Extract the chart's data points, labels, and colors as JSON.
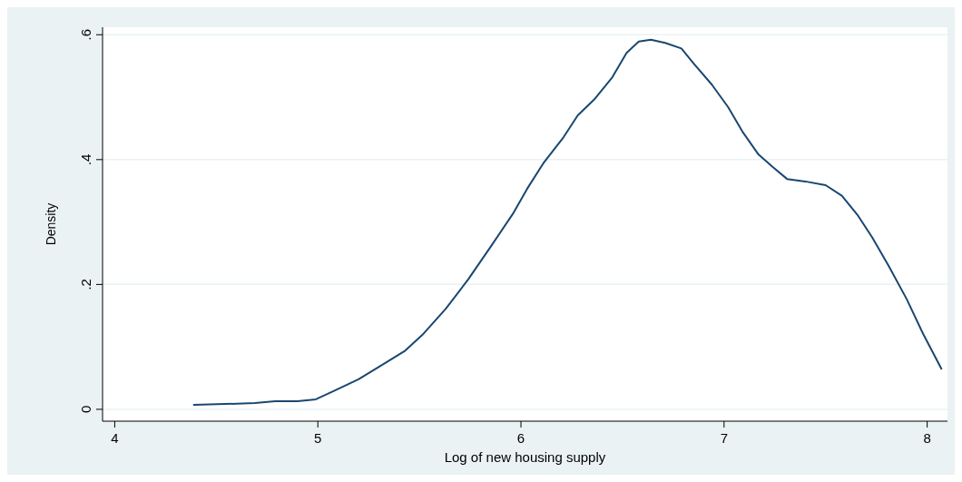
{
  "chart_data": {
    "type": "line",
    "xlabel": "Log of new housing supply",
    "ylabel": "Density",
    "xlim": [
      3.94,
      8.1
    ],
    "ylim": [
      -0.019,
      0.612
    ],
    "xticks": [
      4,
      5,
      6,
      7,
      8
    ],
    "yticks": [
      {
        "value": 0,
        "label": "0"
      },
      {
        "value": 0.2,
        "label": ".2"
      },
      {
        "value": 0.4,
        "label": ".4"
      },
      {
        "value": 0.6,
        "label": ".6"
      }
    ],
    "grid": "y",
    "series": [
      {
        "color": "#1a476f",
        "x": [
          4.39,
          4.69,
          4.79,
          4.9,
          4.99,
          5.07,
          5.2,
          5.31,
          5.43,
          5.52,
          5.63,
          5.74,
          5.85,
          5.96,
          6.03,
          6.11,
          6.21,
          6.28,
          6.36,
          6.45,
          6.52,
          6.58,
          6.64,
          6.71,
          6.79,
          6.85,
          6.94,
          7.02,
          7.09,
          7.17,
          7.24,
          7.31,
          7.4,
          7.5,
          7.58,
          7.66,
          7.73,
          7.81,
          7.9,
          7.98,
          8.07
        ],
        "values": [
          0.007,
          0.01,
          0.013,
          0.013,
          0.016,
          0.028,
          0.048,
          0.07,
          0.094,
          0.121,
          0.161,
          0.208,
          0.26,
          0.313,
          0.353,
          0.394,
          0.436,
          0.471,
          0.496,
          0.532,
          0.571,
          0.589,
          0.592,
          0.587,
          0.578,
          0.554,
          0.52,
          0.484,
          0.445,
          0.408,
          0.388,
          0.369,
          0.365,
          0.359,
          0.342,
          0.31,
          0.275,
          0.23,
          0.176,
          0.121,
          0.065
        ]
      }
    ]
  }
}
